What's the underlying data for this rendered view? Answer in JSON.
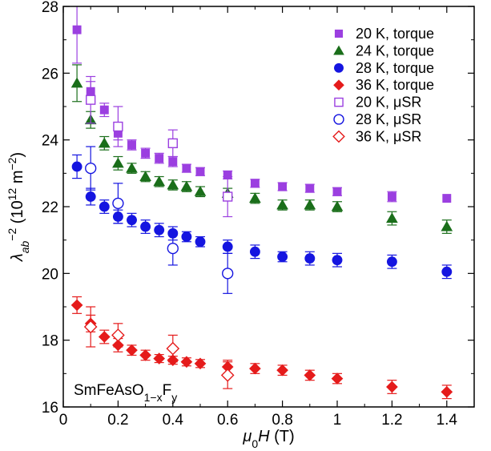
{
  "chart_data": {
    "type": "scatter",
    "xlabel_parts": {
      "sym": "μ",
      "sub": "0",
      "var": "H",
      "unit": " (T)"
    },
    "ylabel_parts": {
      "sym": "λ",
      "sub": "ab",
      "sup": "−2",
      "unit_pre": " (10",
      "unit_sup": "12",
      "unit_mid": " m",
      "unit_sup2": "−2",
      "unit_post": ")"
    },
    "xlim": [
      0,
      1.5
    ],
    "ylim": [
      16,
      28
    ],
    "x_ticks": [
      0,
      0.2,
      0.4,
      0.6,
      0.8,
      1,
      1.2,
      1.4
    ],
    "x_tick_labels": [
      "0",
      "0.2",
      "0.4",
      "0.6",
      "0.8",
      "1",
      "1.2",
      "1.4"
    ],
    "y_ticks": [
      16,
      18,
      20,
      22,
      24,
      26,
      28
    ],
    "y_tick_labels": [
      "16",
      "18",
      "20",
      "22",
      "24",
      "26",
      "28"
    ],
    "annotation": {
      "main": "SmFeAsO",
      "sub": "1−x",
      "tail": "F",
      "sub2": "y"
    },
    "legend_position": "top-right",
    "grid": false,
    "series": [
      {
        "name": "20 K, torque",
        "color": "#9b3fe0",
        "marker": "square",
        "filled": true,
        "points": [
          [
            0.05,
            27.3,
            1.0
          ],
          [
            0.1,
            25.45,
            0.3
          ],
          [
            0.15,
            24.9,
            0.2
          ],
          [
            0.2,
            24.2,
            0.2
          ],
          [
            0.25,
            23.85,
            0.15
          ],
          [
            0.3,
            23.6,
            0.15
          ],
          [
            0.35,
            23.45,
            0.15
          ],
          [
            0.4,
            23.35,
            0.15
          ],
          [
            0.45,
            23.15,
            0.12
          ],
          [
            0.5,
            23.05,
            0.12
          ],
          [
            0.6,
            22.95,
            0.12
          ],
          [
            0.7,
            22.7,
            0.12
          ],
          [
            0.8,
            22.6,
            0.12
          ],
          [
            0.9,
            22.55,
            0.12
          ],
          [
            1.0,
            22.45,
            0.12
          ],
          [
            1.2,
            22.3,
            0.15
          ],
          [
            1.4,
            22.25,
            0
          ]
        ]
      },
      {
        "name": "24 K, torque",
        "color": "#1a6e1a",
        "marker": "triangle",
        "filled": true,
        "points": [
          [
            0.05,
            25.7,
            0.55
          ],
          [
            0.1,
            24.6,
            0.25
          ],
          [
            0.15,
            23.9,
            0.2
          ],
          [
            0.2,
            23.3,
            0.2
          ],
          [
            0.25,
            23.15,
            0.15
          ],
          [
            0.3,
            22.9,
            0.15
          ],
          [
            0.35,
            22.75,
            0.15
          ],
          [
            0.4,
            22.65,
            0.15
          ],
          [
            0.45,
            22.6,
            0.15
          ],
          [
            0.5,
            22.45,
            0.15
          ],
          [
            0.6,
            22.4,
            0.15
          ],
          [
            0.7,
            22.25,
            0.15
          ],
          [
            0.8,
            22.05,
            0.15
          ],
          [
            0.9,
            22.05,
            0.15
          ],
          [
            1.0,
            22.0,
            0.15
          ],
          [
            1.2,
            21.65,
            0.2
          ],
          [
            1.4,
            21.4,
            0.2
          ]
        ]
      },
      {
        "name": "28 K, torque",
        "color": "#1515e0",
        "marker": "circle",
        "filled": true,
        "points": [
          [
            0.05,
            23.2,
            0.35
          ],
          [
            0.1,
            22.3,
            0.25
          ],
          [
            0.15,
            22.0,
            0.2
          ],
          [
            0.2,
            21.7,
            0.2
          ],
          [
            0.25,
            21.6,
            0.2
          ],
          [
            0.3,
            21.4,
            0.2
          ],
          [
            0.35,
            21.3,
            0.2
          ],
          [
            0.4,
            21.2,
            0.2
          ],
          [
            0.45,
            21.1,
            0.15
          ],
          [
            0.5,
            20.95,
            0.15
          ],
          [
            0.6,
            20.8,
            0.2
          ],
          [
            0.7,
            20.65,
            0.2
          ],
          [
            0.8,
            20.5,
            0.15
          ],
          [
            0.9,
            20.45,
            0.2
          ],
          [
            1.0,
            20.4,
            0.2
          ],
          [
            1.2,
            20.35,
            0.2
          ],
          [
            1.4,
            20.05,
            0.2
          ]
        ]
      },
      {
        "name": "36 K, torque",
        "color": "#e51b1b",
        "marker": "diamond",
        "filled": true,
        "points": [
          [
            0.05,
            19.05,
            0.25
          ],
          [
            0.1,
            18.5,
            0.25
          ],
          [
            0.15,
            18.1,
            0.2
          ],
          [
            0.2,
            17.85,
            0.2
          ],
          [
            0.25,
            17.7,
            0.15
          ],
          [
            0.3,
            17.55,
            0.15
          ],
          [
            0.35,
            17.45,
            0.12
          ],
          [
            0.4,
            17.4,
            0.12
          ],
          [
            0.45,
            17.35,
            0.12
          ],
          [
            0.5,
            17.3,
            0.12
          ],
          [
            0.6,
            17.2,
            0.2
          ],
          [
            0.7,
            17.15,
            0.15
          ],
          [
            0.8,
            17.1,
            0.15
          ],
          [
            0.9,
            16.95,
            0.15
          ],
          [
            1.0,
            16.85,
            0.15
          ],
          [
            1.2,
            16.6,
            0.2
          ],
          [
            1.4,
            16.45,
            0.2
          ]
        ]
      },
      {
        "name": "20 K, μSR",
        "color": "#9b3fe0",
        "marker": "square",
        "filled": false,
        "points": [
          [
            0.1,
            25.2,
            0.7
          ],
          [
            0.2,
            24.4,
            0.6
          ],
          [
            0.4,
            23.9,
            0.4
          ],
          [
            0.6,
            22.3,
            0.6
          ]
        ]
      },
      {
        "name": "28 K, μSR",
        "color": "#1515e0",
        "marker": "circle",
        "filled": false,
        "points": [
          [
            0.1,
            23.15,
            0.65
          ],
          [
            0.2,
            22.1,
            0.6
          ],
          [
            0.4,
            20.75,
            0.5
          ],
          [
            0.6,
            20.0,
            0.6
          ]
        ]
      },
      {
        "name": "36 K, μSR",
        "color": "#e51b1b",
        "marker": "diamond",
        "filled": false,
        "points": [
          [
            0.1,
            18.4,
            0.6
          ],
          [
            0.2,
            18.15,
            0.35
          ],
          [
            0.4,
            17.75,
            0.4
          ],
          [
            0.6,
            16.95,
            0.4
          ]
        ]
      }
    ]
  }
}
